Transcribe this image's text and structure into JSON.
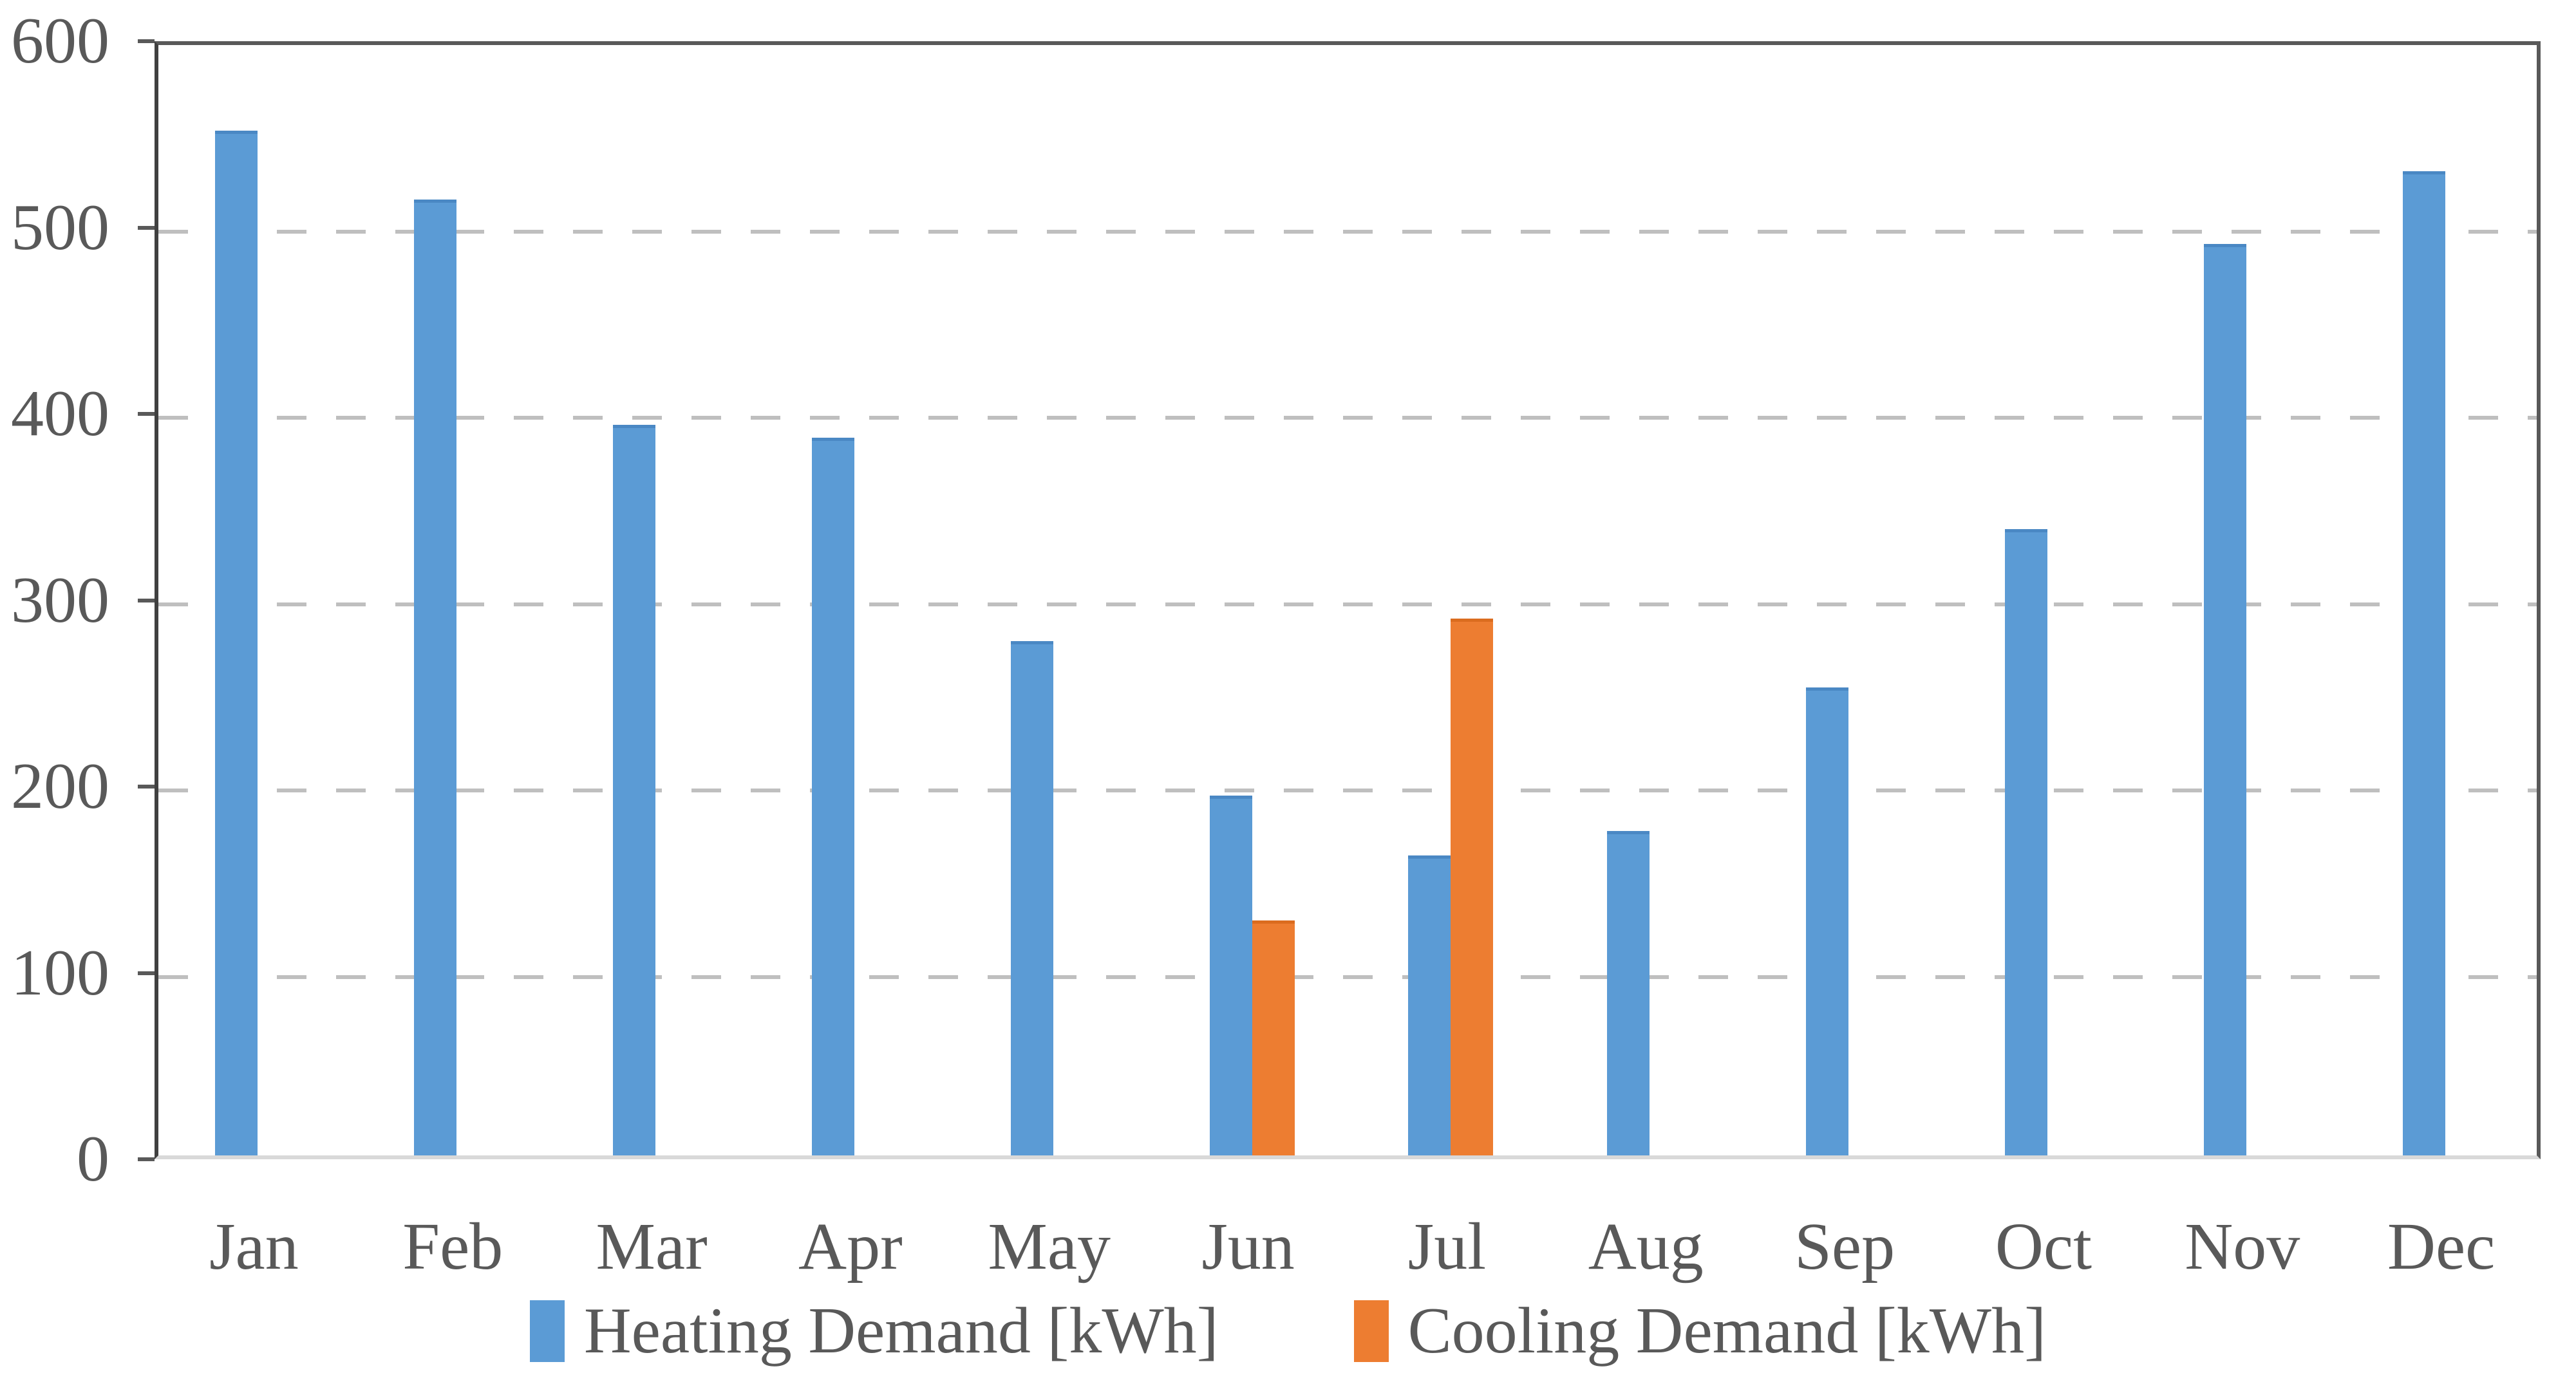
{
  "chart_data": {
    "type": "bar",
    "title": "",
    "xlabel": "",
    "ylabel": "",
    "categories": [
      "Jan",
      "Feb",
      "Mar",
      "Apr",
      "May",
      "Jun",
      "Jul",
      "Aug",
      "Sep",
      "Oct",
      "Nov",
      "Dec"
    ],
    "series": [
      {
        "name": "Heating Demand [kWh]",
        "color": "#5B9BD5",
        "edge_color": "#4A88C4",
        "values": [
          550,
          513,
          392,
          385,
          276,
          193,
          161,
          174,
          251,
          336,
          489,
          528
        ]
      },
      {
        "name": "Cooling Demand [kWh]",
        "color": "#ED7D31",
        "edge_color": "#DB6C1F",
        "values": [
          0,
          0,
          0,
          0,
          0,
          126,
          288,
          0,
          0,
          0,
          0,
          0
        ]
      }
    ],
    "ylim": [
      0,
      600
    ],
    "yticks": [
      0,
      100,
      200,
      300,
      400,
      500,
      600
    ],
    "grid": "horizontal-dashed",
    "legend_position": "bottom-center"
  },
  "axis_style": {
    "gridline_color": "#BFBFBF",
    "tick_color": "#595959",
    "label_color": "#595959",
    "plot_border_color": "#595959",
    "baseline_color": "#D9D9D9"
  }
}
